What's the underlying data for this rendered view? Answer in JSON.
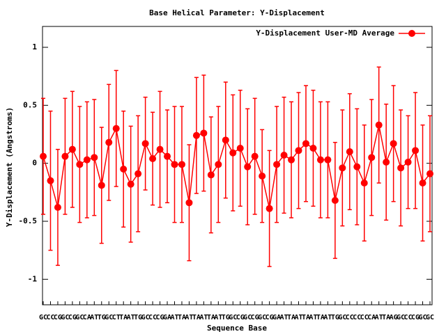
{
  "chart_data": {
    "type": "errorline",
    "title": "Base  Helical Parameter: Y-Displacement",
    "xlabel": "Sequence Base",
    "ylabel": "Y-Displacement (Angstroms)",
    "categories": [
      "GC",
      "CC",
      "CG",
      "GC",
      "CG",
      "GC",
      "CA",
      "AT",
      "TG",
      "GC",
      "CT",
      "TA",
      "AT",
      "TG",
      "GC",
      "CC",
      "CG",
      "GA",
      "AT",
      "TA",
      "AT",
      "TA",
      "AT",
      "TA",
      "AT",
      "TG",
      "GC",
      "CG",
      "GC",
      "CG",
      "GC",
      "CG",
      "GA",
      "AT",
      "TA",
      "AT",
      "TA",
      "AT",
      "TA",
      "AT",
      "TG",
      "GC",
      "CC",
      "CC",
      "CC",
      "CA",
      "AT",
      "TA",
      "AG",
      "GC",
      "CC",
      "CG",
      "GC",
      "GC"
    ],
    "series": [
      {
        "name": "Y-Displacement User-MD Average",
        "color": "#ff0000",
        "values": [
          0.06,
          -0.15,
          -0.38,
          0.06,
          0.12,
          -0.01,
          0.03,
          0.05,
          -0.19,
          0.18,
          0.3,
          -0.05,
          -0.18,
          -0.09,
          0.17,
          0.04,
          0.12,
          0.06,
          -0.01,
          -0.01,
          -0.34,
          0.24,
          0.26,
          -0.1,
          -0.01,
          0.2,
          0.09,
          0.13,
          -0.03,
          0.06,
          -0.11,
          -0.39,
          -0.01,
          0.07,
          0.03,
          0.11,
          0.17,
          0.13,
          0.03,
          0.03,
          -0.32,
          -0.04,
          0.1,
          -0.03,
          -0.17,
          0.05,
          0.33,
          0.01,
          0.17,
          -0.04,
          0.01,
          0.11,
          -0.17,
          -0.09
        ],
        "errors": [
          0.5,
          0.6,
          0.5,
          0.5,
          0.5,
          0.5,
          0.5,
          0.5,
          0.5,
          0.5,
          0.5,
          0.5,
          0.5,
          0.5,
          0.4,
          0.4,
          0.5,
          0.4,
          0.5,
          0.5,
          0.5,
          0.5,
          0.5,
          0.5,
          0.5,
          0.5,
          0.5,
          0.5,
          0.5,
          0.5,
          0.4,
          0.5,
          0.5,
          0.5,
          0.5,
          0.5,
          0.5,
          0.5,
          0.5,
          0.5,
          0.5,
          0.5,
          0.5,
          0.5,
          0.5,
          0.5,
          0.5,
          0.5,
          0.5,
          0.5,
          0.4,
          0.5,
          0.5,
          0.5
        ]
      }
    ],
    "ylim": [
      -1.22,
      1.18
    ],
    "yticks": [
      -1,
      -0.5,
      0,
      0.5,
      1
    ],
    "legend": "top-right"
  }
}
